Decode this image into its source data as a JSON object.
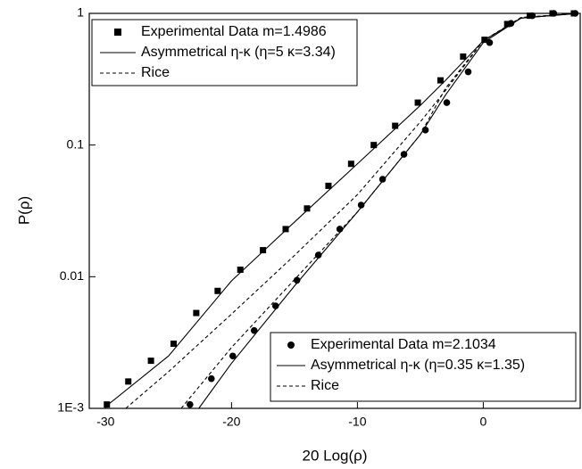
{
  "chart_data": {
    "type": "line",
    "y_scale": "log",
    "x_label": "20 Log(ρ)",
    "y_label": "P(ρ)",
    "xlim": [
      -31.3,
      7.7
    ],
    "xticks": [
      -30,
      -20,
      -10,
      0
    ],
    "ylim": [
      0.001,
      1
    ],
    "yticks": [
      {
        "value": 0.001,
        "label": "1E-3"
      },
      0.01,
      0.1,
      1
    ],
    "series": [
      {
        "name": "Experimental Data m=1.4986",
        "color": "#000000",
        "marker": "square",
        "line": "none",
        "legend": "upper left",
        "x": [
          -29.9,
          -28.2,
          -26.4,
          -24.6,
          -22.8,
          -21.1,
          -19.3,
          -17.5,
          -15.7,
          -14.0,
          -12.3,
          -10.5,
          -8.7,
          -7.0,
          -5.2,
          -3.4,
          -1.6,
          0.1,
          1.9,
          3.7,
          5.5,
          7.2
        ],
        "values": [
          0.00107,
          0.0016,
          0.0023,
          0.0031,
          0.0053,
          0.0078,
          0.0113,
          0.0159,
          0.023,
          0.033,
          0.049,
          0.072,
          0.1,
          0.14,
          0.21,
          0.31,
          0.47,
          0.63,
          0.83,
          0.96,
          1,
          1
        ]
      },
      {
        "name": "Asymmetrical η-κ (η=5 κ=3.34)",
        "color": "#000000",
        "marker": "none",
        "line": "solid",
        "legend": "upper left",
        "x": [
          -29.9,
          -25,
          -20,
          -15,
          -10,
          -5,
          -3,
          0,
          3,
          7.5
        ],
        "values": [
          0.00105,
          0.0025,
          0.0093,
          0.026,
          0.072,
          0.2,
          0.31,
          0.62,
          0.92,
          1
        ]
      },
      {
        "name": "Rice",
        "color": "#000000",
        "marker": "none",
        "line": "dashed",
        "legend": "upper left",
        "x": [
          -28.4,
          -25,
          -20,
          -15,
          -10,
          -5,
          -3,
          0,
          3,
          7.5
        ],
        "values": [
          0.001,
          0.0019,
          0.0052,
          0.0145,
          0.042,
          0.15,
          0.26,
          0.62,
          0.93,
          1
        ]
      },
      {
        "name": "Experimental Data m=2.1034",
        "color": "#000000",
        "marker": "circle",
        "line": "none",
        "legend": "lower right",
        "x": [
          -23.3,
          -21.6,
          -19.9,
          -18.2,
          -16.5,
          -14.8,
          -13.1,
          -11.4,
          -9.7,
          -8.0,
          -6.3,
          -4.6,
          -2.9,
          -1.2,
          0.5,
          2.2,
          3.9,
          5.6,
          7.3
        ],
        "values": [
          0.00107,
          0.00168,
          0.0025,
          0.0039,
          0.006,
          0.0094,
          0.0146,
          0.023,
          0.035,
          0.055,
          0.085,
          0.13,
          0.21,
          0.36,
          0.6,
          0.84,
          0.96,
          1,
          1
        ]
      },
      {
        "name": "Asymmetrical η-κ (η=0.35 κ=1.35)",
        "color": "#000000",
        "marker": "none",
        "line": "solid",
        "legend": "lower right",
        "x": [
          -22.6,
          -20,
          -15,
          -10,
          -5,
          -3,
          0,
          3,
          7.5
        ],
        "values": [
          0.001,
          0.0022,
          0.0085,
          0.031,
          0.12,
          0.24,
          0.6,
          0.92,
          1
        ]
      },
      {
        "name": "Rice",
        "color": "#000000",
        "marker": "none",
        "line": "dashed",
        "legend": "lower right",
        "x": [
          -24,
          -20,
          -15,
          -10,
          -5,
          -3,
          0,
          3,
          7.5
        ],
        "values": [
          0.001,
          0.0029,
          0.0095,
          0.031,
          0.12,
          0.27,
          0.62,
          0.93,
          1
        ]
      }
    ]
  }
}
